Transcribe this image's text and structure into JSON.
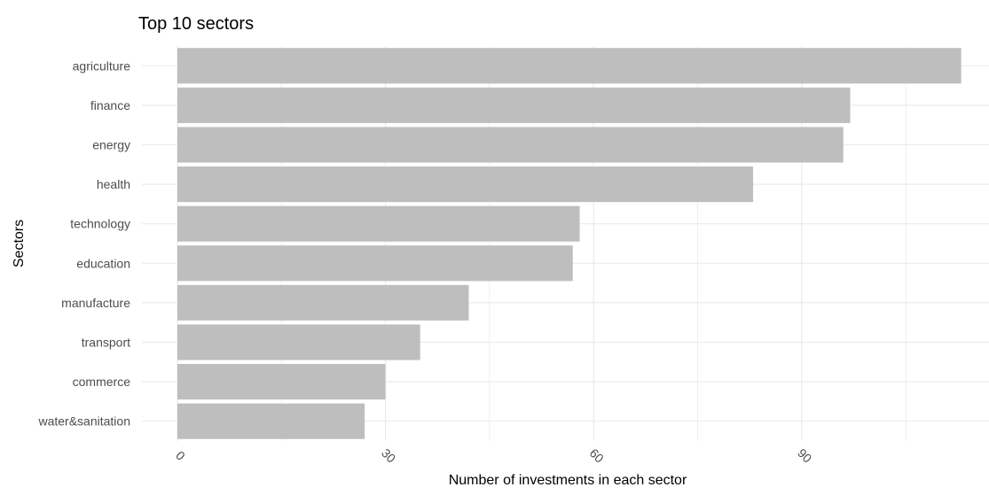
{
  "chart_data": {
    "type": "bar",
    "orientation": "horizontal",
    "title": "Top 10 sectors",
    "xlabel": "Number of investments in each sector",
    "ylabel": "Sectors",
    "categories": [
      "agriculture",
      "finance",
      "energy",
      "health",
      "technology",
      "education",
      "manufacture",
      "transport",
      "commerce",
      "water&sanitation"
    ],
    "values": [
      113,
      97,
      96,
      83,
      58,
      57,
      42,
      35,
      30,
      27
    ],
    "xlim": [
      0,
      115
    ],
    "xticks": [
      0,
      30,
      60,
      90
    ],
    "xtick_labels": [
      "0",
      "30",
      "60",
      "90"
    ],
    "grid": true,
    "bar_color": "#bebebe",
    "grid_color": "#ebebeb",
    "text_color": "#4d4d4d"
  }
}
